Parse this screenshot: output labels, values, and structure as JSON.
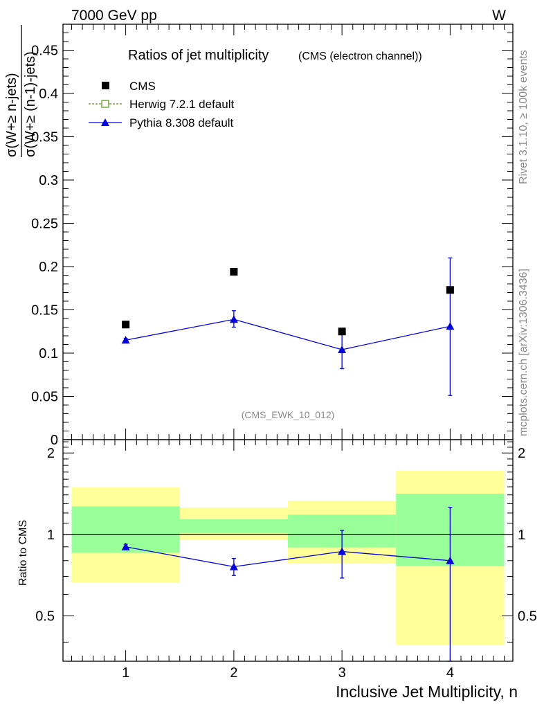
{
  "header": {
    "energy_label": "7000 GeV pp",
    "process_label": "W"
  },
  "side_labels": {
    "rivet": "Rivet 3.1.10, ≥ 100k events",
    "mcplots": "mcplots.cern.ch [arXiv:1306.3436]"
  },
  "colors": {
    "cms": "#000000",
    "herwig": "#5a9f1e",
    "pythia": "#0000dd",
    "band_outer": "#ffff99",
    "band_inner": "#99ff99"
  },
  "chart_data": [
    {
      "type": "scatter",
      "title": "Ratios of jet multiplicity",
      "subtitle": "(CMS (electron channel))",
      "ylabel_numerator": "σ(W+≥ n-jets)",
      "ylabel_denominator": "σ(W+≥ (n-1)-jets)",
      "watermark": "(CMS_EWK_10_012)",
      "xlim": [
        0.42,
        4.58
      ],
      "ylim": [
        0,
        0.48
      ],
      "yticks": [
        0,
        0.05,
        0.1,
        0.15,
        0.2,
        0.25,
        0.3,
        0.35,
        0.4,
        0.45
      ],
      "ytick_labels": [
        "0",
        "0.05",
        "0.1",
        "0.15",
        "0.2",
        "0.25",
        "0.3",
        "0.35",
        "0.4",
        "0.45"
      ],
      "legend_position": "top-left",
      "legend": [
        {
          "label": "CMS",
          "marker": "filled-square"
        },
        {
          "label": "Herwig 7.2.1 default",
          "marker": "open-square-dashed"
        },
        {
          "label": "Pythia 8.308 default",
          "marker": "filled-triangle-line"
        }
      ],
      "series": [
        {
          "name": "CMS",
          "x": [
            1,
            2,
            3,
            4
          ],
          "y": [
            0.133,
            0.194,
            0.125,
            0.173
          ]
        },
        {
          "name": "Pythia 8.308 default",
          "x": [
            1,
            2,
            3,
            4
          ],
          "y": [
            0.115,
            0.139,
            0.104,
            0.131
          ],
          "err_low": [
            0.002,
            0.009,
            0.022,
            0.08
          ],
          "err_high": [
            0.002,
            0.01,
            0.021,
            0.079
          ]
        }
      ]
    },
    {
      "type": "scatter",
      "ylabel": "Ratio to CMS",
      "xlabel": "Inclusive Jet Multiplicity, n",
      "ylim": [
        0.34,
        2.24
      ],
      "xlim": [
        0.42,
        4.58
      ],
      "xticks": [
        1,
        2,
        3,
        4
      ],
      "xtick_labels": [
        "1",
        "2",
        "3",
        "4"
      ],
      "yticks": [
        0.5,
        1,
        2
      ],
      "ytick_labels": [
        "0.5",
        "1",
        "2"
      ],
      "bands": [
        {
          "x_low": 0.5,
          "x_high": 1.5,
          "inner": [
            0.855,
            1.27
          ],
          "outer": [
            0.665,
            1.495
          ]
        },
        {
          "x_low": 1.5,
          "x_high": 2.5,
          "inner": [
            1.01,
            1.138
          ],
          "outer": [
            0.955,
            1.258
          ]
        },
        {
          "x_low": 2.5,
          "x_high": 3.5,
          "inner": [
            0.895,
            1.183
          ],
          "outer": [
            0.78,
            1.333
          ]
        },
        {
          "x_low": 3.5,
          "x_high": 4.5,
          "inner": [
            0.765,
            1.415
          ],
          "outer": [
            0.39,
            1.722
          ]
        }
      ],
      "series": [
        {
          "name": "Pythia 8.308 default",
          "x": [
            1,
            2,
            3,
            4
          ],
          "y": [
            0.9,
            0.76,
            0.865,
            0.8
          ],
          "err_low": [
            0.02,
            0.055,
            0.175,
            0.46
          ],
          "err_high": [
            0.02,
            0.055,
            0.17,
            0.46
          ]
        }
      ]
    }
  ]
}
